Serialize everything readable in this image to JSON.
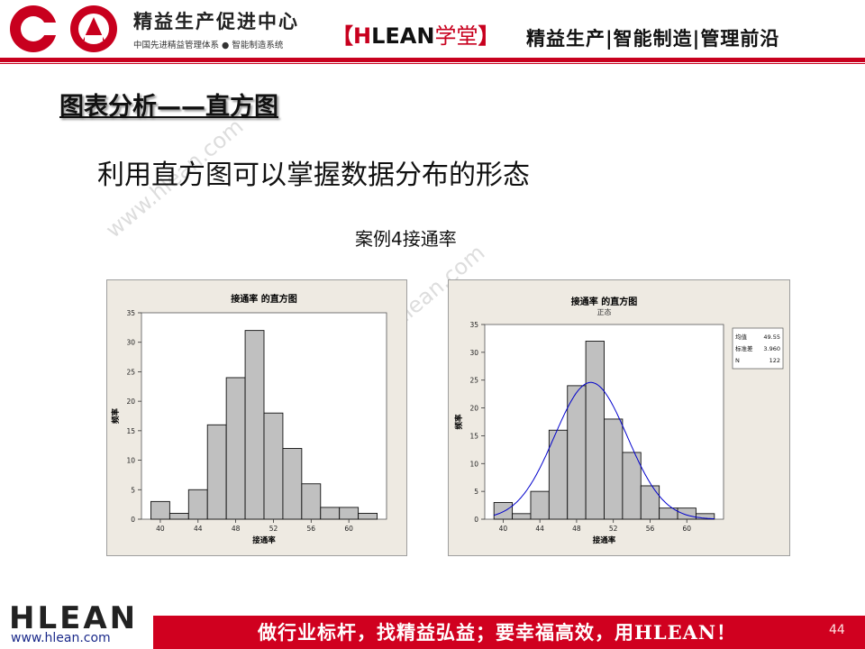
{
  "header": {
    "org_name": "精益生产促进中心",
    "org_sub": "中国先进精益管理体系 ● 智能制造系统",
    "brand_open": "【",
    "brand_h": "H",
    "brand_rest": "LEAN",
    "brand_cn": "学堂",
    "brand_close": "】",
    "tagline": "精益生产|智能制造|管理前沿",
    "accent_color": "#c8001e"
  },
  "slide": {
    "title": "图表分析——直方图",
    "subtitle": "利用直方图可以掌握数据分布的形态",
    "case_label": "案例4接通率",
    "watermark": "www.hlean.com",
    "page_number": "44"
  },
  "footer": {
    "logo_text": "HLEAN",
    "url": "www.hlean.com",
    "slogan": "做行业标杆，找精益弘益；要幸福高效，用HLEAN！",
    "bar_color": "#d0001f"
  },
  "chart_data": [
    {
      "type": "bar",
      "title": "接通率 的直方图",
      "subtitle": "",
      "xlabel": "接通率",
      "ylabel": "频率",
      "bin_start": 39,
      "bin_width": 2,
      "values": [
        3,
        1,
        5,
        16,
        24,
        32,
        18,
        12,
        6,
        2,
        2,
        1
      ],
      "xticks": [
        40,
        44,
        48,
        52,
        56,
        60
      ],
      "yticks": [
        0,
        5,
        10,
        15,
        20,
        25,
        30,
        35
      ],
      "xlim": [
        38,
        64
      ],
      "ylim": [
        0,
        35
      ],
      "grid": false,
      "bar_color": "#c0c0c0"
    },
    {
      "type": "bar",
      "title": "接通率 的直方图",
      "subtitle": "正态",
      "xlabel": "接通率",
      "ylabel": "频率",
      "bin_start": 39,
      "bin_width": 2,
      "values": [
        3,
        1,
        5,
        16,
        24,
        32,
        18,
        12,
        6,
        2,
        2,
        1
      ],
      "xticks": [
        40,
        44,
        48,
        52,
        56,
        60
      ],
      "yticks": [
        0,
        5,
        10,
        15,
        20,
        25,
        30,
        35
      ],
      "xlim": [
        38,
        64
      ],
      "ylim": [
        0,
        35
      ],
      "grid": false,
      "bar_color": "#c0c0c0",
      "fit": {
        "type": "normal",
        "mean": 49.55,
        "stdev": 3.96,
        "n": 122,
        "color": "#0000cc"
      },
      "legend": {
        "position": "top-right",
        "rows": [
          {
            "label": "均值",
            "value": "49.55"
          },
          {
            "label": "标准差",
            "value": "3.960"
          },
          {
            "label": "N",
            "value": "122"
          }
        ]
      }
    }
  ]
}
